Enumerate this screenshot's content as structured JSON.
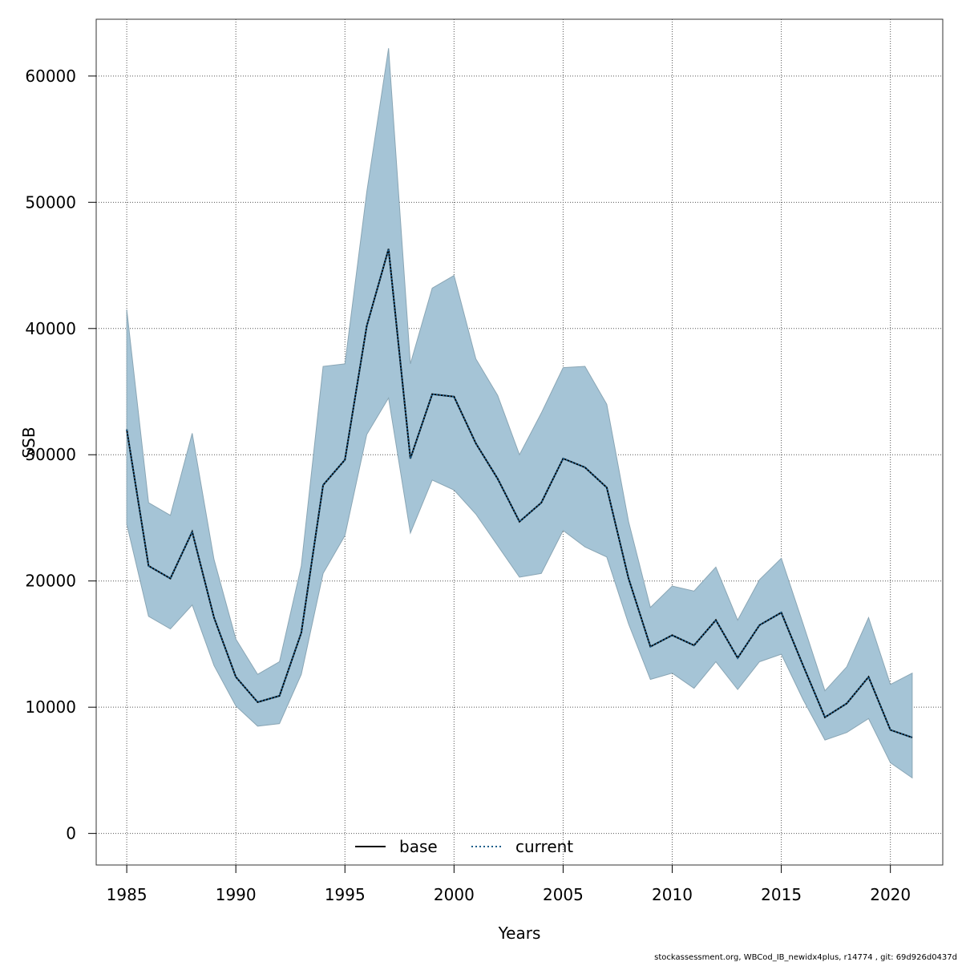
{
  "chart_data": {
    "type": "line",
    "ylabel": "SSB",
    "xlabel": "Years",
    "xlim": [
      1983.6,
      2022.4
    ],
    "ylim": [
      -2500,
      64500
    ],
    "x_ticks": [
      1985,
      1990,
      1995,
      2000,
      2005,
      2010,
      2015,
      2020
    ],
    "y_ticks": [
      0,
      10000,
      20000,
      30000,
      40000,
      50000,
      60000
    ],
    "grid": true,
    "legend_position": "bottom",
    "x": [
      1985,
      1986,
      1987,
      1988,
      1989,
      1990,
      1991,
      1992,
      1993,
      1994,
      1995,
      1996,
      1997,
      1998,
      1999,
      2000,
      2001,
      2002,
      2003,
      2004,
      2005,
      2006,
      2007,
      2008,
      2009,
      2010,
      2011,
      2012,
      2013,
      2014,
      2015,
      2016,
      2017,
      2018,
      2019,
      2020,
      2021
    ],
    "series": [
      {
        "name": "base",
        "style": "solid",
        "color": "#000000",
        "values": [
          32000,
          21200,
          20200,
          23900,
          17100,
          12400,
          10400,
          10900,
          15900,
          27600,
          29600,
          40200,
          46300,
          29700,
          34800,
          34600,
          30900,
          28100,
          24700,
          26200,
          29700,
          29000,
          27400,
          20200,
          14800,
          15700,
          14900,
          16900,
          13900,
          16500,
          17500,
          13300,
          9200,
          10300,
          12400,
          8200,
          7600
        ]
      },
      {
        "name": "current",
        "style": "dotted",
        "color": "#1f5f8b",
        "values": [
          32000,
          21200,
          20200,
          23900,
          17100,
          12400,
          10400,
          10900,
          15900,
          27600,
          29600,
          40200,
          46300,
          29700,
          34800,
          34600,
          30900,
          28100,
          24700,
          26200,
          29700,
          29000,
          27400,
          20200,
          14800,
          15700,
          14900,
          16900,
          13900,
          16500,
          17500,
          13300,
          9200,
          10300,
          12400,
          8200,
          7600
        ]
      }
    ],
    "band": {
      "color": "#a5c4d6",
      "upper": [
        41500,
        26200,
        25200,
        31700,
        21700,
        15400,
        12600,
        13600,
        21200,
        37000,
        37200,
        50800,
        62200,
        37200,
        43200,
        44200,
        37600,
        34700,
        30000,
        33300,
        36900,
        37000,
        34000,
        24700,
        17900,
        19600,
        19200,
        21100,
        16900,
        20100,
        21800,
        16600,
        11300,
        13200,
        17100,
        11800,
        12700
      ],
      "lower": [
        24500,
        17200,
        16200,
        18100,
        13300,
        10100,
        8500,
        8700,
        12600,
        20600,
        23600,
        31600,
        34500,
        23800,
        28000,
        27200,
        25300,
        22800,
        20300,
        20600,
        24000,
        22700,
        21900,
        16600,
        12200,
        12700,
        11500,
        13600,
        11400,
        13600,
        14200,
        10600,
        7400,
        8000,
        9100,
        5600,
        4400
      ]
    }
  },
  "legend": {
    "base_label": "base",
    "current_label": "current"
  },
  "footer": {
    "text": "stockassessment.org, WBCod_IB_newidx4plus, r14774 , git: 69d926d0437d"
  }
}
